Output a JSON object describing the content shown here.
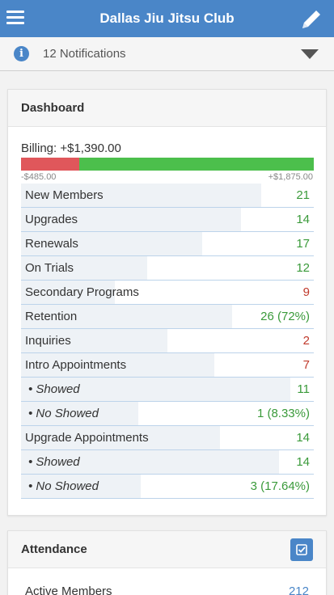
{
  "app": {
    "title": "Dallas Jiu Jitsu Club"
  },
  "notifications": {
    "text": "12 Notifications"
  },
  "dashboard": {
    "title": "Dashboard",
    "billing": {
      "label": "Billing: +$1,390.00",
      "min_label": "-$485.00",
      "max_label": "+$1,875.00",
      "negative_fraction": 0.2,
      "positive_fraction": 0.8
    },
    "rows": [
      {
        "label": "New Members",
        "value": "21",
        "color": "green",
        "fill": 0.82,
        "sub": false
      },
      {
        "label": "Upgrades",
        "value": "14",
        "color": "green",
        "fill": 0.75,
        "sub": false
      },
      {
        "label": "Renewals",
        "value": "17",
        "color": "green",
        "fill": 0.62,
        "sub": false
      },
      {
        "label": "On Trials",
        "value": "12",
        "color": "green",
        "fill": 0.43,
        "sub": false
      },
      {
        "label": "Secondary Programs",
        "value": "9",
        "color": "red",
        "fill": 0.32,
        "sub": false
      },
      {
        "label": "Retention",
        "value": "26 (72%)",
        "color": "green",
        "fill": 0.72,
        "sub": false
      },
      {
        "label": "Inquiries",
        "value": "2",
        "color": "red",
        "fill": 0.5,
        "sub": false
      },
      {
        "label": "Intro Appointments",
        "value": "7",
        "color": "red",
        "fill": 0.66,
        "sub": false
      },
      {
        "label": "• Showed",
        "value": "11",
        "color": "green",
        "fill": 0.92,
        "sub": true
      },
      {
        "label": "• No Showed",
        "value": "1 (8.33%)",
        "color": "green",
        "fill": 0.4,
        "sub": true
      },
      {
        "label": "Upgrade Appointments",
        "value": "14",
        "color": "green",
        "fill": 0.68,
        "sub": false
      },
      {
        "label": "• Showed",
        "value": "14",
        "color": "green",
        "fill": 0.88,
        "sub": true
      },
      {
        "label": "• No Showed",
        "value": "3 (17.64%)",
        "color": "green",
        "fill": 0.41,
        "sub": true
      }
    ]
  },
  "attendance": {
    "title": "Attendance",
    "first_row": {
      "label": "Active Members",
      "value": "212"
    }
  },
  "colors": {
    "primary": "#4a86c8",
    "positive": "#3a9a3a",
    "negative": "#c0392b"
  },
  "icons": {
    "menu": "hamburger-icon",
    "edit": "pencil-icon",
    "info": "info-icon",
    "dropdown": "caret-down-icon",
    "attendance": "checkbox-edit-icon"
  }
}
